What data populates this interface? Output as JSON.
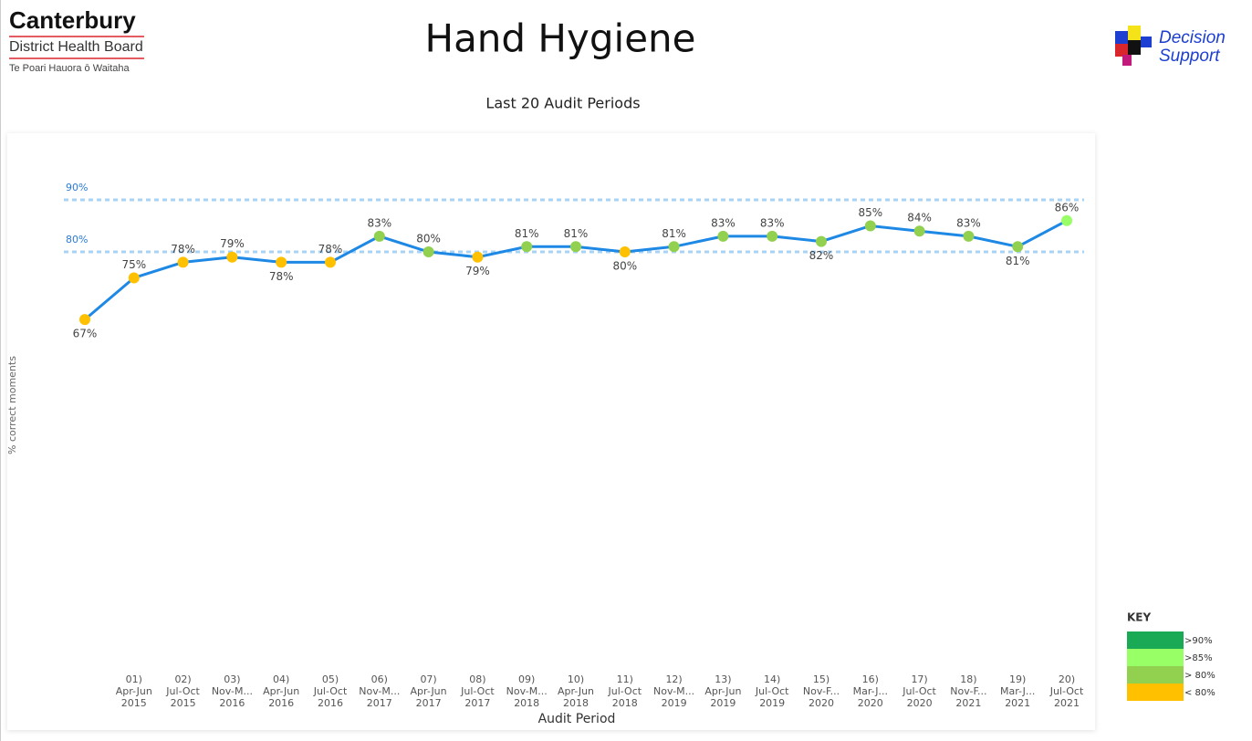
{
  "header": {
    "org": "Canterbury",
    "org_sub": "District Health Board",
    "org_maori": "Te Poari Hauora ō Waitaha",
    "title": "Hand Hygiene",
    "logo": [
      "Decision",
      "Support"
    ]
  },
  "chart_data": {
    "type": "line",
    "subtitle": "Last 20 Audit Periods",
    "y_label": "% correct moments",
    "x_label": "Audit Period",
    "categories": [
      null,
      [
        "01)",
        "Apr-Jun",
        "2015"
      ],
      [
        "02)",
        "Jul-Oct",
        "2015"
      ],
      [
        "03)",
        "Nov-M...",
        "2016"
      ],
      [
        "04)",
        "Apr-Jun",
        "2016"
      ],
      [
        "05)",
        "Jul-Oct",
        "2016"
      ],
      [
        "06)",
        "Nov-M...",
        "2017"
      ],
      [
        "07)",
        "Apr-Jun",
        "2017"
      ],
      [
        "08)",
        "Jul-Oct",
        "2017"
      ],
      [
        "09)",
        "Nov-M...",
        "2018"
      ],
      [
        "10)",
        "Apr-Jun",
        "2018"
      ],
      [
        "11)",
        "Jul-Oct",
        "2018"
      ],
      [
        "12)",
        "Nov-M...",
        "2019"
      ],
      [
        "13)",
        "Apr-Jun",
        "2019"
      ],
      [
        "14)",
        "Jul-Oct",
        "2019"
      ],
      [
        "15)",
        "Nov-F...",
        "2020"
      ],
      [
        "16)",
        "Mar-J...",
        "2020"
      ],
      [
        "17)",
        "Jul-Oct",
        "2020"
      ],
      [
        "18)",
        "Nov-F...",
        "2021"
      ],
      [
        "19)",
        "Mar-J...",
        "2021"
      ],
      [
        "20)",
        "Jul-Oct",
        "2021"
      ]
    ],
    "values": [
      67,
      75,
      78,
      79,
      78,
      78,
      83,
      80,
      79,
      81,
      81,
      80,
      81,
      83,
      83,
      82,
      85,
      84,
      83,
      81,
      86
    ],
    "value_labels": [
      "67%",
      "75%",
      "78%",
      "79%",
      "78%",
      "78%",
      "83%",
      "80%",
      "79%",
      "81%",
      "81%",
      "80%",
      "81%",
      "83%",
      "83%",
      "82%",
      "85%",
      "84%",
      "83%",
      "81%",
      "86%"
    ],
    "point_colors": [
      "#ffc000",
      "#ffc000",
      "#ffc000",
      "#ffc000",
      "#ffc000",
      "#ffc000",
      "#92d050",
      "#92d050",
      "#ffc000",
      "#92d050",
      "#92d050",
      "#ffc000",
      "#92d050",
      "#92d050",
      "#92d050",
      "#92d050",
      "#92d050",
      "#92d050",
      "#92d050",
      "#92d050",
      "#99ff66"
    ],
    "color": "#1e88e5",
    "ylim": [
      0,
      100
    ],
    "reference_lines": [
      {
        "value": 90,
        "label": "90%"
      },
      {
        "value": 80,
        "label": "80%"
      }
    ],
    "reference_color": "#a9d3f5"
  },
  "key": {
    "title": "KEY",
    "items": [
      {
        "label": ">90%",
        "color": "#1aaa55"
      },
      {
        "label": ">85%",
        "color": "#99ff66"
      },
      {
        "label": "> 80%",
        "color": "#92d050"
      },
      {
        "label": "< 80%",
        "color": "#ffc000"
      }
    ]
  }
}
